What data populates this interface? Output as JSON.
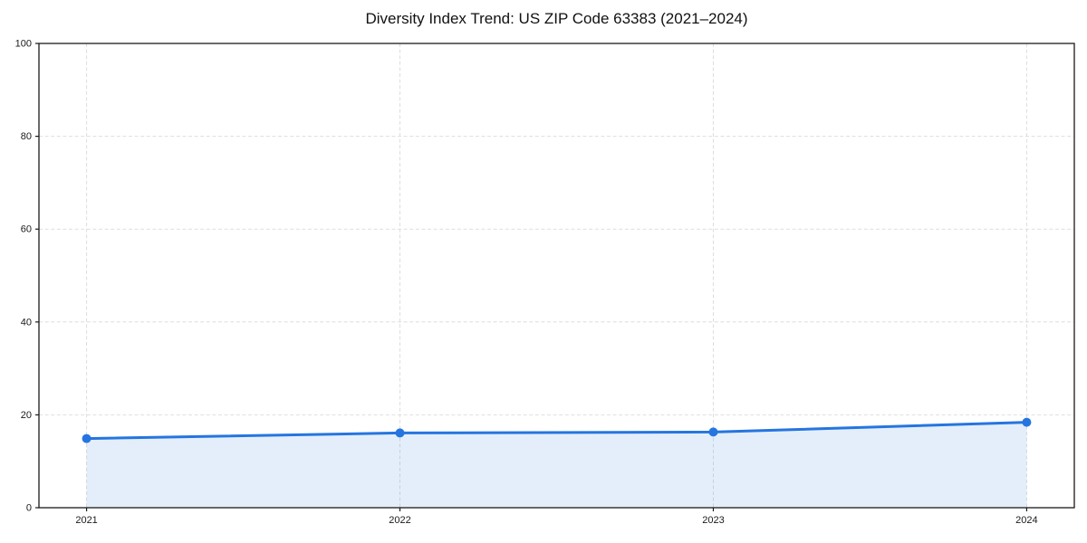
{
  "chart_data": {
    "type": "line",
    "title": "Diversity Index Trend: US ZIP Code 63383 (2021–2024)",
    "x": [
      "2021",
      "2022",
      "2023",
      "2024"
    ],
    "series": [
      {
        "name": "Diversity Index",
        "values": [
          14.9,
          16.1,
          16.3,
          18.4
        ]
      }
    ],
    "xlabel": "",
    "ylabel": "",
    "ylim": [
      0,
      100
    ],
    "yticks": [
      0,
      20,
      40,
      60,
      80,
      100
    ],
    "grid": "dashed",
    "legend_position": "none",
    "area_fill": true,
    "area_fill_opacity": 0.12,
    "marker": "circle",
    "marker_radius": 5,
    "line_width": 3,
    "colors": {
      "line": "#2575e0",
      "marker": "#2575e0",
      "area_fill_base": "#2575e0",
      "grid": "#dedede",
      "frame": "#1a1a1a",
      "title_text": "#111111",
      "tick_text": "#1a1a1a",
      "background": "#ffffff"
    }
  }
}
